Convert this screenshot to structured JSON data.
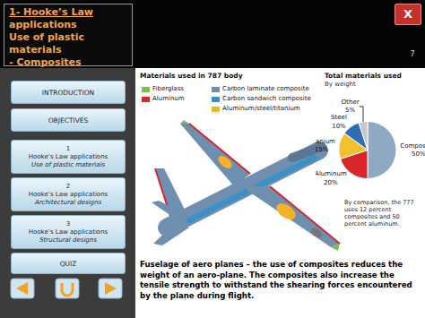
{
  "header": {
    "title_lines": [
      "1- Hooke’s Law",
      "applications",
      "Use of plastic materials",
      "- Composites"
    ],
    "page": "7",
    "close": "X"
  },
  "sidebar": {
    "buttons": [
      {
        "title": "INTRODUCTION"
      },
      {
        "title": "OBJECTIVES"
      },
      {
        "number": "1",
        "title": "Hooke’s Law applications",
        "subtitle": "Use of plastic materials"
      },
      {
        "number": "2",
        "title": "Hooke’s Law applications",
        "subtitle": "Architectural designs"
      },
      {
        "number": "3",
        "title": "Hooke’s Law applications",
        "subtitle": "Structural designs"
      },
      {
        "title": "QUIZ"
      }
    ]
  },
  "figure": {
    "title": "Materials used in 787 body",
    "legend": [
      {
        "label": "Fiberglass",
        "color": "#7cc24a"
      },
      {
        "label": "Aluminum",
        "color": "#d8262b"
      },
      {
        "label": "Carbon laminate composite",
        "color": "#6f8fb0"
      },
      {
        "label": "Carbon sandwich composite",
        "color": "#3b8fc9"
      },
      {
        "label": "Aluminum/steel/titanium",
        "color": "#f2b327"
      }
    ]
  },
  "chart_data": {
    "type": "pie",
    "title": "Total materials used",
    "subtitle": "By weight",
    "categories": [
      "Composites",
      "Aluminum",
      "Titanium",
      "Steel",
      "Other"
    ],
    "values": [
      50,
      20,
      15,
      10,
      5
    ],
    "value_labels": [
      "50%",
      "20%",
      "15%",
      "10%",
      "5%"
    ],
    "colors": [
      "#8fa9c4",
      "#d8262b",
      "#f2c12e",
      "#2f6db5",
      "#c8c8c8"
    ],
    "data_labels": true,
    "annotations": [
      "By comparison, the 777 uses 12 percent composites and 50 percent aluminum."
    ]
  },
  "caption": "Fuselage of aero planes – the use of composites reduces the weight of an aero-plane. The composites also increase the tensile strength to withstand the shearing forces encountered by the plane during flight."
}
